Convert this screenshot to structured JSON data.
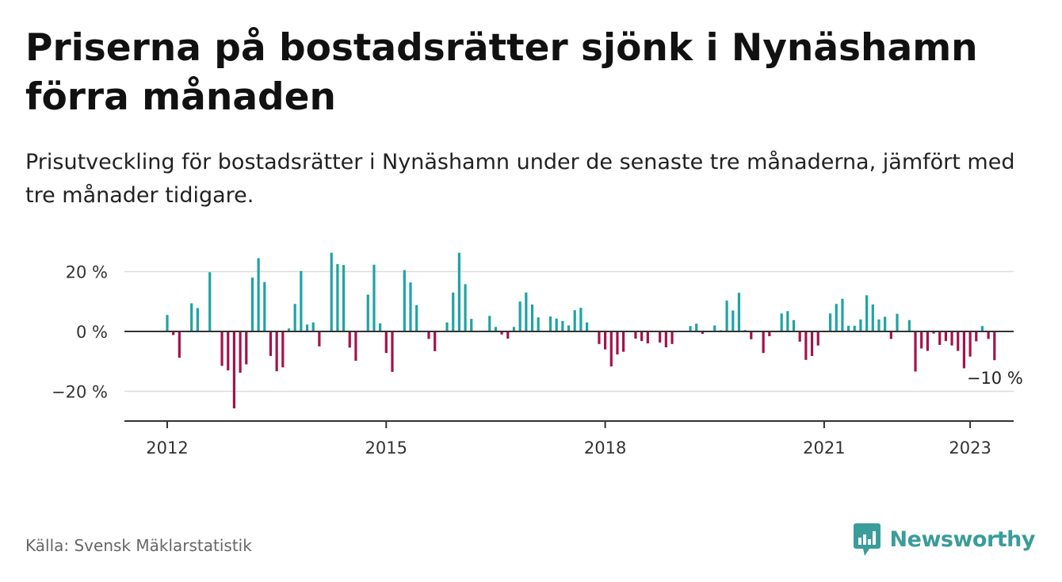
{
  "header": {
    "title": "Priserna på bostadsrätter sjönk i Nynäshamn förra månaden",
    "subtitle": "Prisutveckling för bostadsrätter i Nynäshamn under de senaste tre månaderna, jämfört med tre månader tidigare."
  },
  "footer": {
    "source": "Källa: Svensk Mäklarstatistik",
    "brand": "Newsworthy"
  },
  "colors": {
    "positive": "#1fa3a3",
    "negative": "#a3134a",
    "brand": "#3a9c9b",
    "grid": "#dddddd",
    "axis": "#333333"
  },
  "chart_data": {
    "type": "bar",
    "x_unit": "month",
    "x_start": "2012-01",
    "x_end": "2023-01",
    "x_ticks": [
      "2012",
      "2015",
      "2018",
      "2021",
      "2023"
    ],
    "y_ticks": [
      "20 %",
      "0 %",
      "−20 %"
    ],
    "y_tick_values": [
      20,
      0,
      -20
    ],
    "ylim": [
      -30,
      30
    ],
    "grid": true,
    "last_value_label": "−10 %",
    "values": [
      5.5,
      -1.2,
      -8.8,
      0,
      9.4,
      7.8,
      0,
      19.8,
      0,
      -11.5,
      -13,
      -25.7,
      -13.8,
      -11,
      18,
      24.5,
      16.5,
      -8.2,
      -13.3,
      -12,
      1,
      9.2,
      20.2,
      2.3,
      3,
      -5,
      0,
      26.3,
      22.5,
      22.2,
      -5.4,
      -9.8,
      0,
      12.3,
      22.3,
      2.7,
      -7.2,
      -13.5,
      0,
      20.5,
      16.4,
      8.8,
      0,
      -2.5,
      -6.6,
      0,
      3,
      13,
      26.3,
      15.8,
      4.2,
      0,
      0,
      5.2,
      1.5,
      -1,
      -2.4,
      1.5,
      10,
      13,
      9,
      4.7,
      0,
      5,
      4.3,
      3.5,
      2,
      7.1,
      7.9,
      3,
      0,
      -4.2,
      -6,
      -11.7,
      -7.7,
      -6.8,
      0,
      -2.4,
      -3.2,
      -4,
      0,
      -3.7,
      -5.3,
      -4.2,
      0,
      0,
      1.8,
      2.6,
      -0.8,
      0,
      2,
      0.4,
      10.3,
      7,
      12.9,
      0.5,
      -2.6,
      0,
      -7.2,
      -1.6,
      0,
      6,
      6.8,
      3.8,
      -3.4,
      -9.5,
      -8.2,
      -4.7,
      0,
      6,
      9.2,
      10.9,
      1.9,
      1.9,
      4,
      12.1,
      9,
      4,
      4.9,
      -2.5,
      5.9,
      0,
      3.8,
      -13.4,
      -5.7,
      -6.5,
      -0.7,
      -4.5,
      -3.2,
      -4.7,
      -6.5,
      -12.3,
      -8.4,
      -3.3,
      1.8,
      -2.5,
      -9.6
    ]
  }
}
